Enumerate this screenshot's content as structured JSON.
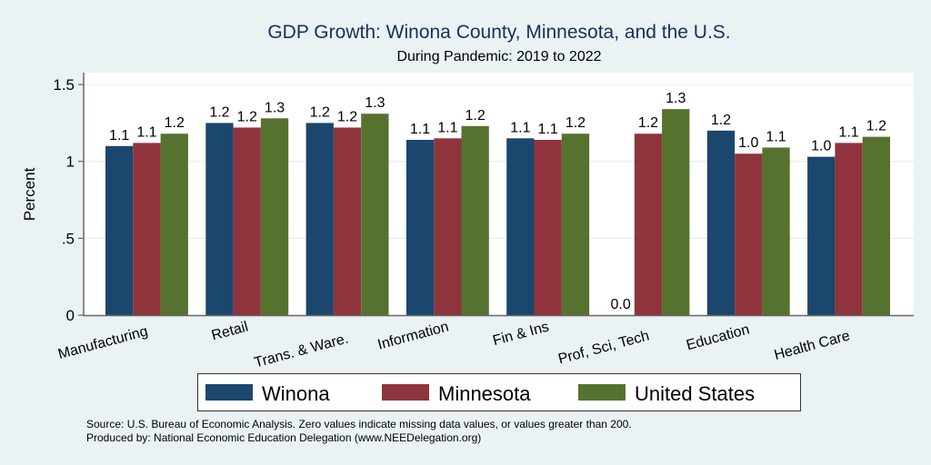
{
  "chart_data": {
    "type": "bar",
    "title": "GDP Growth: Winona County, Minnesota, and the U.S.",
    "subtitle": "During Pandemic: 2019 to 2022",
    "xlabel": "",
    "ylabel": "Percent",
    "ylim": [
      0,
      1.6
    ],
    "yticks": [
      0,
      0.5,
      1,
      1.5
    ],
    "ytick_labels": [
      "0",
      ".5",
      "1",
      "1.5"
    ],
    "grid": true,
    "legend_position": "bottom",
    "categories": [
      "Manufacturing",
      "Retail",
      "Trans. & Ware.",
      "Information",
      "Fin & Ins",
      "Prof, Sci, Tech",
      "Education",
      "Health Care"
    ],
    "series": [
      {
        "name": "Winona",
        "color": "#1b466e",
        "values": [
          1.1,
          1.25,
          1.25,
          1.14,
          1.15,
          0.0,
          1.2,
          1.03
        ],
        "labels": [
          "1.1",
          "1.2",
          "1.2",
          "1.1",
          "1.1",
          "0.0",
          "1.2",
          "1.0"
        ]
      },
      {
        "name": "Minnesota",
        "color": "#8f343c",
        "values": [
          1.12,
          1.22,
          1.22,
          1.15,
          1.14,
          1.18,
          1.05,
          1.12
        ],
        "labels": [
          "1.1",
          "1.2",
          "1.2",
          "1.1",
          "1.1",
          "1.2",
          "1.0",
          "1.1"
        ]
      },
      {
        "name": "United States",
        "color": "#56722f",
        "values": [
          1.18,
          1.28,
          1.31,
          1.23,
          1.18,
          1.34,
          1.09,
          1.16
        ],
        "labels": [
          "1.2",
          "1.3",
          "1.3",
          "1.2",
          "1.2",
          "1.3",
          "1.1",
          "1.2"
        ]
      }
    ],
    "notes": [
      "Source: U.S. Bureau of Economic Analysis. Zero values indicate missing data values, or values greater than 200.",
      "Produced by: National Economic Education Delegation (www.NEEDelegation.org)"
    ]
  }
}
